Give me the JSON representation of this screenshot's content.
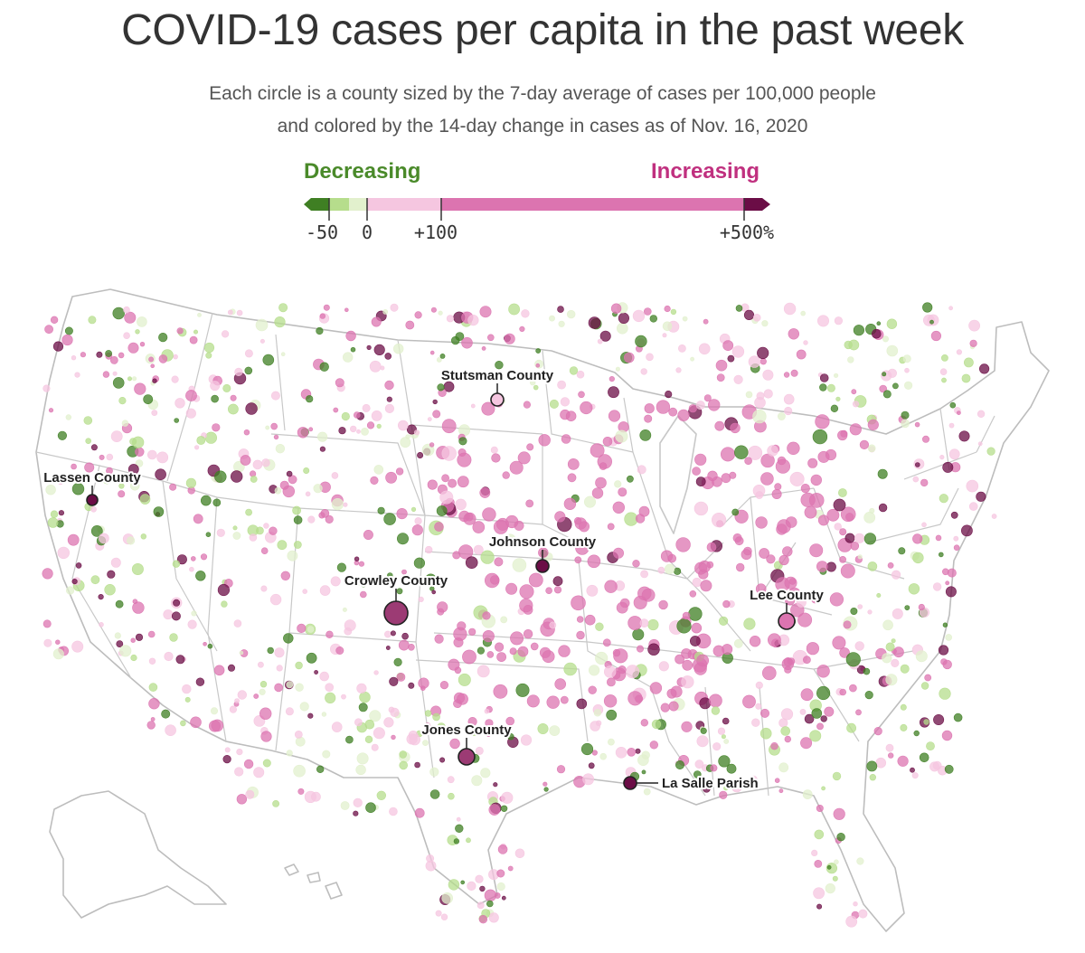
{
  "title": "COVID-19 cases per capita in the past week",
  "subtitle_line1": "Each circle is a county sized by the 7-day average of cases per 100,000 people",
  "subtitle_line2": "and colored by the 14-day change in cases as of Nov. 16, 2020",
  "legend": {
    "decreasing_label": "Decreasing",
    "increasing_label": "Increasing",
    "decreasing_color": "#4a8a2a",
    "increasing_color": "#c0307f",
    "ticks": [
      "-50",
      "0",
      "+100",
      "+500%"
    ],
    "colors": {
      "dark_green": "#3f7f23",
      "mid_green": "#b6dd8c",
      "light_green": "#e2f0cd",
      "light_pink": "#f5c6e0",
      "mid_pink": "#dc74b0",
      "dark_purple": "#6b0d46"
    }
  },
  "annotations": [
    {
      "name": "Stutsman County"
    },
    {
      "name": "Lassen County"
    },
    {
      "name": "Johnson County"
    },
    {
      "name": "Crowley County"
    },
    {
      "name": "Lee County"
    },
    {
      "name": "Jones County"
    },
    {
      "name": "La Salle Parish"
    }
  ]
}
